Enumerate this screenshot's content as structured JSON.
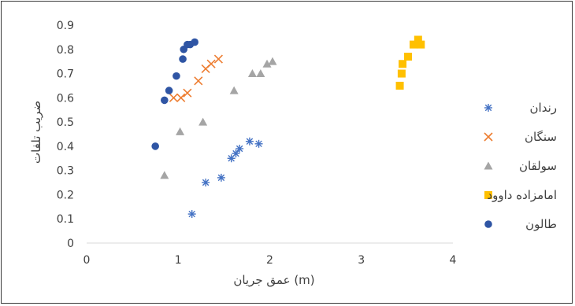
{
  "chart_data": {
    "type": "scatter",
    "title": "",
    "xlabel": "عمق جریان (m)",
    "ylabel": "ضریب تلفات",
    "xlim": [
      0,
      4
    ],
    "ylim": [
      0,
      0.9
    ],
    "x_ticks": [
      "0",
      "1",
      "2",
      "3",
      "4"
    ],
    "y_ticks": [
      "0",
      "0.1",
      "0.2",
      "0.3",
      "0.4",
      "0.5",
      "0.6",
      "0.7",
      "0.8",
      "0.9"
    ],
    "grid": false,
    "legend_position": "right",
    "series": [
      {
        "name": "رندان",
        "marker": "asterisk",
        "color": "#4472c4",
        "points": [
          [
            1.15,
            0.12
          ],
          [
            1.3,
            0.25
          ],
          [
            1.47,
            0.27
          ],
          [
            1.58,
            0.35
          ],
          [
            1.63,
            0.37
          ],
          [
            1.67,
            0.39
          ],
          [
            1.78,
            0.42
          ],
          [
            1.88,
            0.41
          ]
        ]
      },
      {
        "name": "سنگان",
        "marker": "x",
        "color": "#ed7d31",
        "points": [
          [
            0.95,
            0.6
          ],
          [
            1.03,
            0.6
          ],
          [
            1.1,
            0.62
          ],
          [
            1.22,
            0.67
          ],
          [
            1.3,
            0.72
          ],
          [
            1.36,
            0.74
          ],
          [
            1.44,
            0.76
          ]
        ]
      },
      {
        "name": "سولقان",
        "marker": "triangle",
        "color": "#a5a5a5",
        "points": [
          [
            0.85,
            0.28
          ],
          [
            1.02,
            0.46
          ],
          [
            1.27,
            0.5
          ],
          [
            1.61,
            0.63
          ],
          [
            1.81,
            0.7
          ],
          [
            1.9,
            0.7
          ],
          [
            1.97,
            0.74
          ],
          [
            2.03,
            0.75
          ]
        ]
      },
      {
        "name": "امامزاده داوود",
        "marker": "square",
        "color": "#ffc000",
        "points": [
          [
            3.42,
            0.65
          ],
          [
            3.44,
            0.7
          ],
          [
            3.45,
            0.74
          ],
          [
            3.51,
            0.77
          ],
          [
            3.57,
            0.82
          ],
          [
            3.62,
            0.84
          ],
          [
            3.65,
            0.82
          ]
        ]
      },
      {
        "name": "طالون",
        "marker": "circle",
        "color": "#2f55a4",
        "points": [
          [
            0.75,
            0.4
          ],
          [
            0.85,
            0.59
          ],
          [
            0.9,
            0.63
          ],
          [
            0.98,
            0.69
          ],
          [
            1.05,
            0.76
          ],
          [
            1.06,
            0.8
          ],
          [
            1.1,
            0.82
          ],
          [
            1.13,
            0.82
          ],
          [
            1.18,
            0.83
          ]
        ]
      }
    ]
  }
}
